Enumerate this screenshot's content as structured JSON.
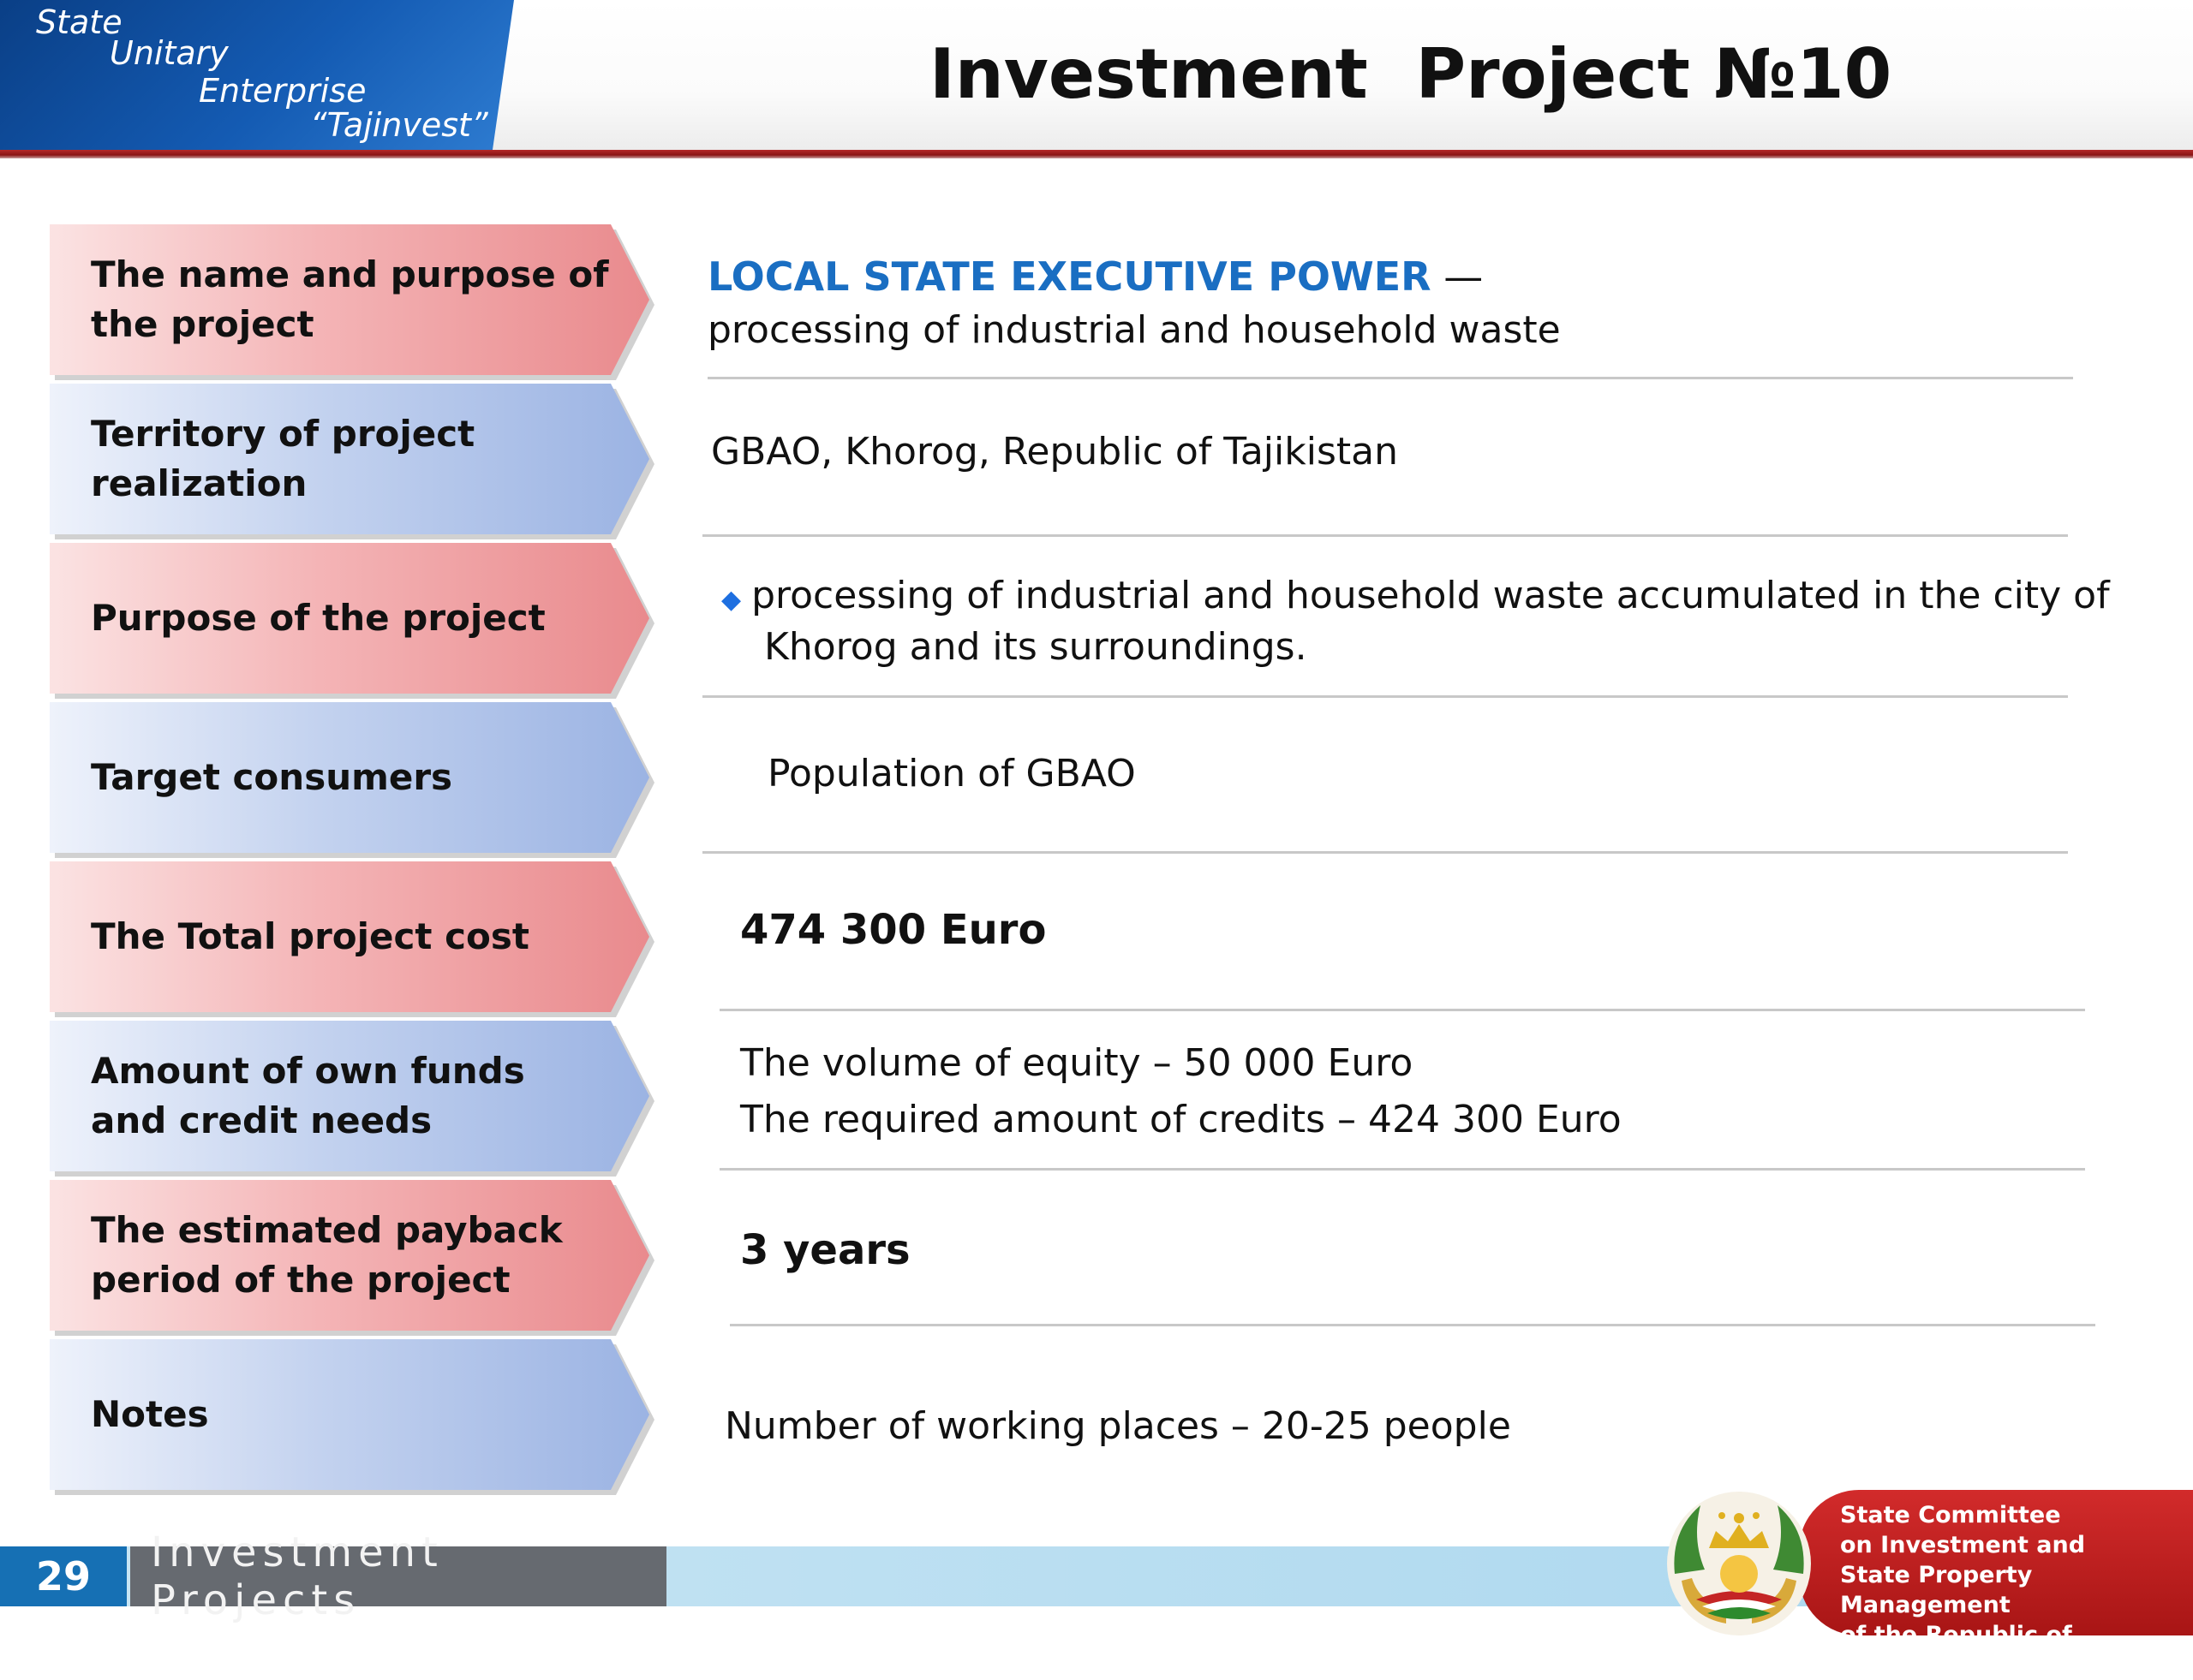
{
  "header": {
    "org_lines": [
      "State",
      "Unitary",
      "Enterprise",
      "“Tajinvest”"
    ],
    "title": "Investment  Project №10"
  },
  "rows": [
    {
      "label": "The name and purpose of\nthe project"
    },
    {
      "label": "Territory of project\nrealization"
    },
    {
      "label": "Purpose of the project"
    },
    {
      "label": "Target consumers"
    },
    {
      "label": "The Total project cost"
    },
    {
      "label": "Amount of own funds\nand credit needs"
    },
    {
      "label": "The estimated payback\nperiod of the project"
    },
    {
      "label": "Notes"
    }
  ],
  "values": {
    "name_highlight": "LOCAL STATE EXECUTIVE POWER",
    "name_dash": " —",
    "name_desc": "processing of industrial and household waste",
    "territory": "GBAO, Khorog, Republic of Tajikistan",
    "purpose_line1": "processing of industrial and household waste accumulated in the city of",
    "purpose_line2": "Khorog and its surroundings.",
    "consumers": "Population of GBAO",
    "total_cost": "474 300 Euro",
    "equity": "The volume of equity – 50 000 Euro",
    "credits": "The required amount of credits – 424 300 Euro",
    "payback": "3 years",
    "notes": "Number of working places – 20-25 people"
  },
  "footer": {
    "page_number": "29",
    "section": "Investment Projects",
    "committee": "State Committee\non Investment and\nState Property Management\nof the Republic of Tajikistan"
  },
  "colors": {
    "accent_blue": "#1a6ec2",
    "header_blue": "#145bb3",
    "red_rule": "#8a1414",
    "red_label": "#e98a8d",
    "blue_label": "#9bb3e3"
  }
}
